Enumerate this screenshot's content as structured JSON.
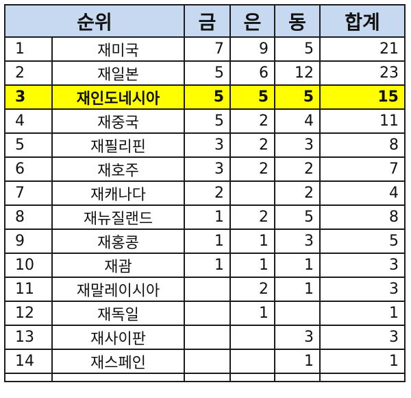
{
  "headers": {
    "rank": "순위",
    "gold": "금",
    "silver": "은",
    "bronze": "동",
    "total": "합계"
  },
  "highlight_color": "#ffff00",
  "header_color": "#c6d9f0",
  "rows": [
    {
      "rank": "1",
      "name": "재미국",
      "gold": "7",
      "silver": "9",
      "bronze": "5",
      "total": "21",
      "highlight": false
    },
    {
      "rank": "2",
      "name": "재일본",
      "gold": "5",
      "silver": "6",
      "bronze": "12",
      "total": "23",
      "highlight": false
    },
    {
      "rank": "3",
      "name": "재인도네시아",
      "gold": "5",
      "silver": "5",
      "bronze": "5",
      "total": "15",
      "highlight": true
    },
    {
      "rank": "4",
      "name": "재중국",
      "gold": "5",
      "silver": "2",
      "bronze": "4",
      "total": "11",
      "highlight": false
    },
    {
      "rank": "5",
      "name": "재필리핀",
      "gold": "3",
      "silver": "2",
      "bronze": "3",
      "total": "8",
      "highlight": false
    },
    {
      "rank": "6",
      "name": "재호주",
      "gold": "3",
      "silver": "2",
      "bronze": "2",
      "total": "7",
      "highlight": false
    },
    {
      "rank": "7",
      "name": "재캐나다",
      "gold": "2",
      "silver": "",
      "bronze": "2",
      "total": "4",
      "highlight": false
    },
    {
      "rank": "8",
      "name": "재뉴질랜드",
      "gold": "1",
      "silver": "2",
      "bronze": "5",
      "total": "8",
      "highlight": false
    },
    {
      "rank": "9",
      "name": "재홍콩",
      "gold": "1",
      "silver": "1",
      "bronze": "3",
      "total": "5",
      "highlight": false
    },
    {
      "rank": "10",
      "name": "재괌",
      "gold": "1",
      "silver": "1",
      "bronze": "1",
      "total": "3",
      "highlight": false
    },
    {
      "rank": "11",
      "name": "재말레이시아",
      "gold": "",
      "silver": "2",
      "bronze": "1",
      "total": "3",
      "highlight": false
    },
    {
      "rank": "12",
      "name": "재독일",
      "gold": "",
      "silver": "1",
      "bronze": "",
      "total": "1",
      "highlight": false
    },
    {
      "rank": "13",
      "name": "재사이판",
      "gold": "",
      "silver": "",
      "bronze": "3",
      "total": "3",
      "highlight": false
    },
    {
      "rank": "14",
      "name": "재스페인",
      "gold": "",
      "silver": "",
      "bronze": "1",
      "total": "1",
      "highlight": false
    }
  ]
}
